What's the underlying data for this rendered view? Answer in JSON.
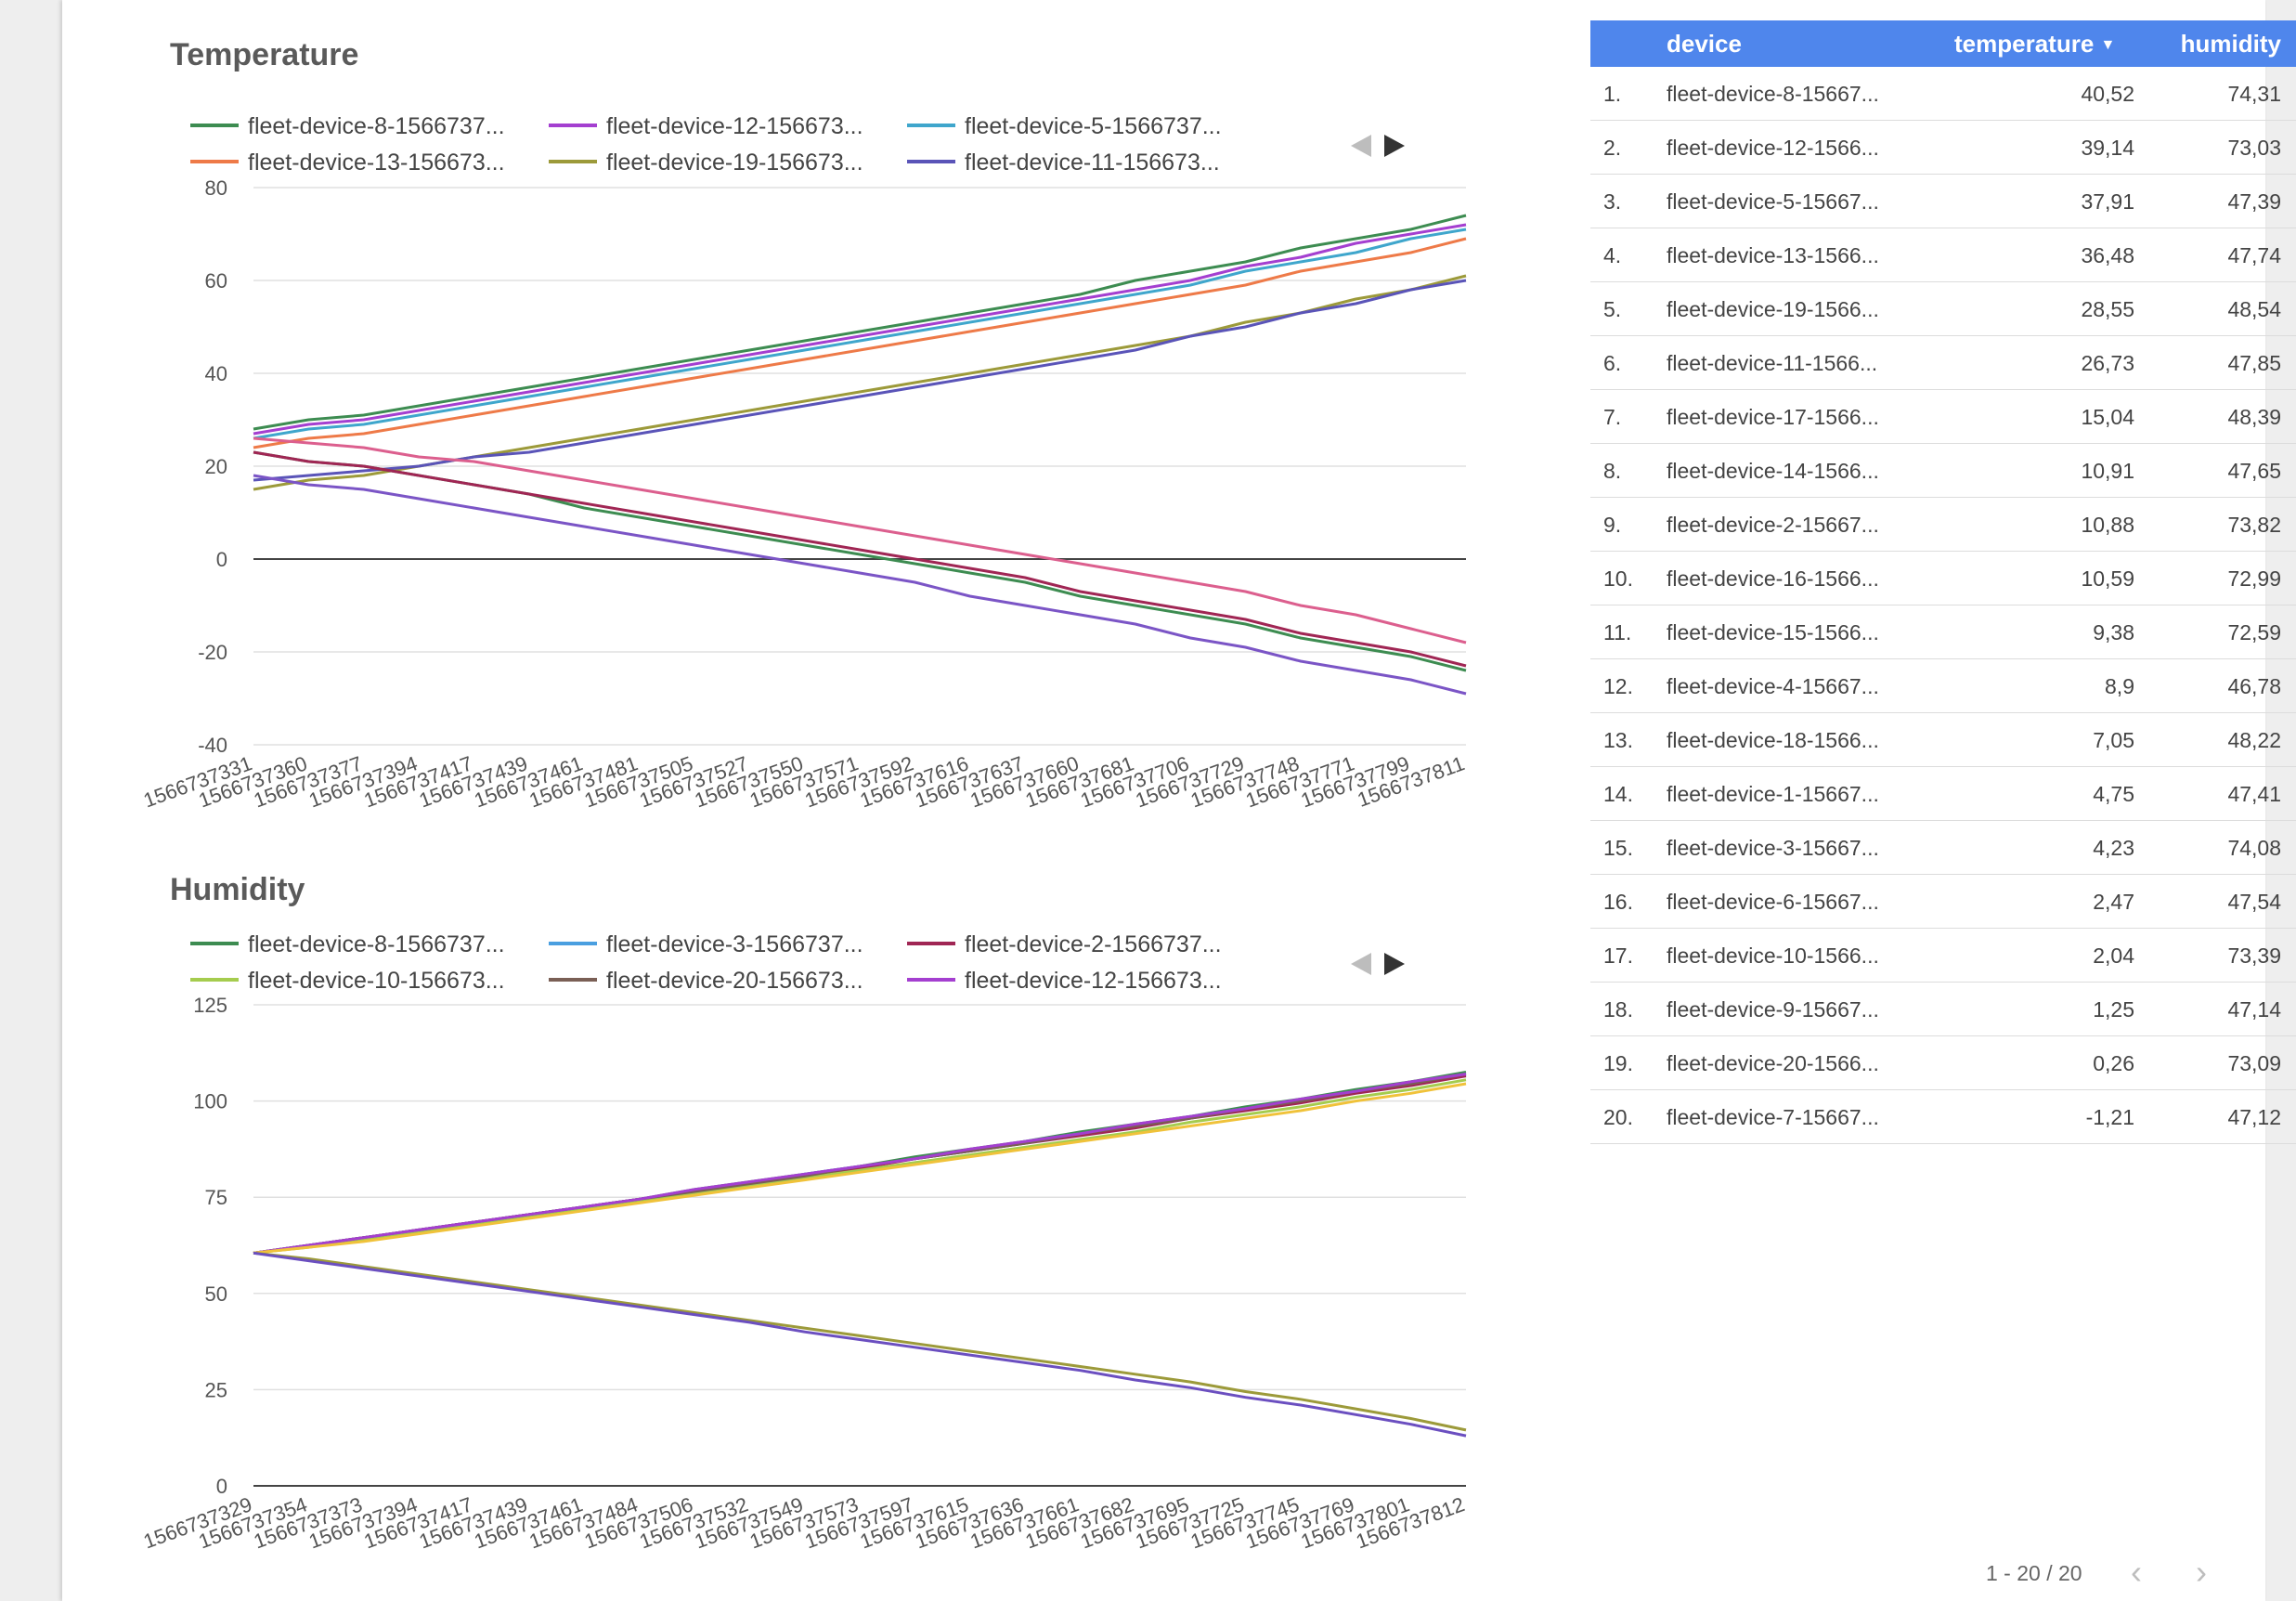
{
  "temperature_chart": {
    "title": "Temperature",
    "legend": [
      {
        "label": "fleet-device-8-1566737...",
        "color": "#3d8c51"
      },
      {
        "label": "fleet-device-12-156673...",
        "color": "#a43fd0"
      },
      {
        "label": "fleet-device-5-1566737...",
        "color": "#3fa6cc"
      },
      {
        "label": "fleet-device-13-156673...",
        "color": "#ee7a48"
      },
      {
        "label": "fleet-device-19-156673...",
        "color": "#9c9a3a"
      },
      {
        "label": "fleet-device-11-156673...",
        "color": "#5a54b8"
      }
    ]
  },
  "humidity_chart": {
    "title": "Humidity",
    "legend": [
      {
        "label": "fleet-device-8-1566737...",
        "color": "#3d8c51"
      },
      {
        "label": "fleet-device-3-1566737...",
        "color": "#4a9fe0"
      },
      {
        "label": "fleet-device-2-1566737...",
        "color": "#a02654"
      },
      {
        "label": "fleet-device-10-156673...",
        "color": "#a5cc4e"
      },
      {
        "label": "fleet-device-20-156673...",
        "color": "#7a5f55"
      },
      {
        "label": "fleet-device-12-156673...",
        "color": "#a43fd0"
      }
    ]
  },
  "chart_data": [
    {
      "type": "line",
      "title": "Temperature",
      "ylim": [
        -40,
        80
      ],
      "yticks": [
        80,
        60,
        40,
        20,
        0,
        -20,
        -40
      ],
      "x": [
        "1566737331",
        "1566737360",
        "1566737377",
        "1566737394",
        "1566737417",
        "1566737439",
        "1566737461",
        "1566737481",
        "1566737505",
        "1566737527",
        "1566737550",
        "1566737571",
        "1566737592",
        "1566737616",
        "1566737637",
        "1566737660",
        "1566737681",
        "1566737706",
        "1566737729",
        "1566737748",
        "1566737771",
        "1566737799",
        "1566737811"
      ],
      "grid": true,
      "legend_position": "top",
      "series": [
        {
          "name": "fleet-device-8-1566737...",
          "color": "#3d8c51",
          "values": [
            28,
            30,
            31,
            33,
            35,
            37,
            39,
            41,
            43,
            45,
            47,
            49,
            51,
            53,
            55,
            57,
            60,
            62,
            64,
            67,
            69,
            71,
            74
          ]
        },
        {
          "name": "fleet-device-12-156673...",
          "color": "#a43fd0",
          "values": [
            27,
            29,
            30,
            32,
            34,
            36,
            38,
            40,
            42,
            44,
            46,
            48,
            50,
            52,
            54,
            56,
            58,
            60,
            63,
            65,
            68,
            70,
            72
          ]
        },
        {
          "name": "fleet-device-5-1566737...",
          "color": "#3fa6cc",
          "values": [
            26,
            28,
            29,
            31,
            33,
            35,
            37,
            39,
            41,
            43,
            45,
            47,
            49,
            51,
            53,
            55,
            57,
            59,
            62,
            64,
            66,
            69,
            71
          ]
        },
        {
          "name": "fleet-device-13-156673...",
          "color": "#ee7a48",
          "values": [
            24,
            26,
            27,
            29,
            31,
            33,
            35,
            37,
            39,
            41,
            43,
            45,
            47,
            49,
            51,
            53,
            55,
            57,
            59,
            62,
            64,
            66,
            69
          ]
        },
        {
          "name": "fleet-device-19-156673...",
          "color": "#9c9a3a",
          "values": [
            15,
            17,
            18,
            20,
            22,
            24,
            26,
            28,
            30,
            32,
            34,
            36,
            38,
            40,
            42,
            44,
            46,
            48,
            51,
            53,
            56,
            58,
            61
          ]
        },
        {
          "name": "fleet-device-11-156673...",
          "color": "#5a54b8",
          "values": [
            17,
            18,
            19,
            20,
            22,
            23,
            25,
            27,
            29,
            31,
            33,
            35,
            37,
            39,
            41,
            43,
            45,
            48,
            50,
            53,
            55,
            58,
            60
          ]
        },
        {
          "color": "#3d8c51",
          "values": [
            23,
            21,
            20,
            18,
            16,
            14,
            11,
            9,
            7,
            5,
            3,
            1,
            -1,
            -3,
            -5,
            -8,
            -10,
            -12,
            -14,
            -17,
            -19,
            -21,
            -24
          ]
        },
        {
          "color": "#a02654",
          "values": [
            23,
            21,
            20,
            18,
            16,
            14,
            12,
            10,
            8,
            6,
            4,
            2,
            0,
            -2,
            -4,
            -7,
            -9,
            -11,
            -13,
            -16,
            -18,
            -20,
            -23
          ]
        },
        {
          "color": "#dc5f8e",
          "values": [
            26,
            25,
            24,
            22,
            21,
            19,
            17,
            15,
            13,
            11,
            9,
            7,
            5,
            3,
            1,
            -1,
            -3,
            -5,
            -7,
            -10,
            -12,
            -15,
            -18
          ]
        },
        {
          "color": "#7b55c6",
          "values": [
            18,
            16,
            15,
            13,
            11,
            9,
            7,
            5,
            3,
            1,
            -1,
            -3,
            -5,
            -8,
            -10,
            -12,
            -14,
            -17,
            -19,
            -22,
            -24,
            -26,
            -29
          ]
        }
      ]
    },
    {
      "type": "line",
      "title": "Humidity",
      "ylim": [
        0,
        125
      ],
      "yticks": [
        125,
        100,
        75,
        50,
        25,
        0
      ],
      "x": [
        "1566737329",
        "1566737354",
        "1566737373",
        "1566737394",
        "1566737417",
        "1566737439",
        "1566737461",
        "1566737484",
        "1566737506",
        "1566737532",
        "1566737549",
        "1566737573",
        "1566737597",
        "1566737615",
        "1566737636",
        "1566737661",
        "1566737682",
        "1566737695",
        "1566737725",
        "1566737745",
        "1566737769",
        "1566737801",
        "1566737812"
      ],
      "grid": true,
      "legend_position": "top",
      "series": [
        {
          "name": "fleet-device-8-1566737...",
          "color": "#3d8c51",
          "values": [
            60.5,
            62.5,
            64.5,
            66.5,
            68.5,
            70.5,
            72.5,
            74.5,
            77,
            79,
            81,
            83,
            85.5,
            87.5,
            89.5,
            92,
            94,
            96,
            98.5,
            100.5,
            103,
            105,
            107.5
          ]
        },
        {
          "name": "fleet-device-3-1566737...",
          "color": "#4a9fe0",
          "values": [
            60.5,
            62.5,
            64.5,
            66.5,
            68.5,
            70.5,
            72.5,
            74.5,
            76.5,
            78.5,
            81,
            83,
            85,
            87,
            89.5,
            91.5,
            93.5,
            96,
            98,
            100,
            102.5,
            104.5,
            107
          ]
        },
        {
          "name": "fleet-device-2-1566737...",
          "color": "#a02654",
          "values": [
            60.5,
            62.5,
            64.5,
            66.5,
            68.5,
            70.5,
            72.5,
            74.5,
            76.5,
            78.5,
            80.5,
            82.5,
            85,
            87,
            89,
            91,
            93,
            95.5,
            97.5,
            99.5,
            102,
            104,
            106.5
          ]
        },
        {
          "name": "fleet-device-10-156673...",
          "color": "#a5cc4e",
          "values": [
            60.5,
            62,
            64,
            66,
            68,
            70,
            72,
            74,
            76,
            78,
            80,
            82,
            84,
            86,
            88,
            90,
            92,
            94.5,
            96.5,
            98.5,
            101,
            103,
            105.5
          ]
        },
        {
          "name": "fleet-device-20-156673...",
          "color": "#7a5f55",
          "values": [
            60.5,
            62.5,
            64.5,
            66.5,
            68.5,
            70.5,
            72.5,
            74.5,
            76.5,
            78.5,
            80.5,
            83,
            85,
            87,
            89,
            91.5,
            93.5,
            95.5,
            98,
            100,
            102.5,
            104.5,
            107
          ]
        },
        {
          "name": "fleet-device-12-156673...",
          "color": "#a43fd0",
          "values": [
            60.5,
            62.5,
            64.5,
            66.5,
            68.5,
            70.5,
            72.5,
            74.5,
            77,
            79,
            81,
            83,
            85,
            87.5,
            89.5,
            91.5,
            94,
            96,
            98,
            100.5,
            102.5,
            105,
            107
          ]
        },
        {
          "color": "#f0c23a",
          "values": [
            60.5,
            62,
            63.5,
            65.5,
            67.5,
            69.5,
            71.5,
            73.5,
            75.5,
            77.5,
            79.5,
            81.5,
            83.5,
            85.5,
            87.5,
            89.5,
            91.5,
            93.5,
            95.5,
            97.5,
            100,
            102,
            104.5
          ]
        },
        {
          "color": "#9c9a3a",
          "values": [
            60.5,
            59,
            57,
            55,
            53,
            51,
            49,
            47,
            45,
            43,
            41,
            39,
            37,
            35,
            33,
            31,
            29,
            27,
            24.5,
            22.5,
            20,
            17.5,
            14.5
          ]
        },
        {
          "color": "#6b4fc0",
          "values": [
            60.5,
            58.5,
            56.5,
            54.5,
            52.5,
            50.5,
            48.5,
            46.5,
            44.5,
            42.5,
            40,
            38,
            36,
            34,
            32,
            30,
            27.5,
            25.5,
            23,
            21,
            18.5,
            16,
            13
          ]
        }
      ]
    }
  ],
  "table": {
    "headers": {
      "device": "device",
      "temperature": "temperature",
      "humidity": "humidity"
    },
    "sort_icon": "sort-desc-icon",
    "rows": [
      {
        "index": "1.",
        "device": "fleet-device-8-15667...",
        "temperature": "40,52",
        "humidity": "74,31"
      },
      {
        "index": "2.",
        "device": "fleet-device-12-1566...",
        "temperature": "39,14",
        "humidity": "73,03"
      },
      {
        "index": "3.",
        "device": "fleet-device-5-15667...",
        "temperature": "37,91",
        "humidity": "47,39"
      },
      {
        "index": "4.",
        "device": "fleet-device-13-1566...",
        "temperature": "36,48",
        "humidity": "47,74"
      },
      {
        "index": "5.",
        "device": "fleet-device-19-1566...",
        "temperature": "28,55",
        "humidity": "48,54"
      },
      {
        "index": "6.",
        "device": "fleet-device-11-1566...",
        "temperature": "26,73",
        "humidity": "47,85"
      },
      {
        "index": "7.",
        "device": "fleet-device-17-1566...",
        "temperature": "15,04",
        "humidity": "48,39"
      },
      {
        "index": "8.",
        "device": "fleet-device-14-1566...",
        "temperature": "10,91",
        "humidity": "47,65"
      },
      {
        "index": "9.",
        "device": "fleet-device-2-15667...",
        "temperature": "10,88",
        "humidity": "73,82"
      },
      {
        "index": "10.",
        "device": "fleet-device-16-1566...",
        "temperature": "10,59",
        "humidity": "72,99"
      },
      {
        "index": "11.",
        "device": "fleet-device-15-1566...",
        "temperature": "9,38",
        "humidity": "72,59"
      },
      {
        "index": "12.",
        "device": "fleet-device-4-15667...",
        "temperature": "8,9",
        "humidity": "46,78"
      },
      {
        "index": "13.",
        "device": "fleet-device-18-1566...",
        "temperature": "7,05",
        "humidity": "48,22"
      },
      {
        "index": "14.",
        "device": "fleet-device-1-15667...",
        "temperature": "4,75",
        "humidity": "47,41"
      },
      {
        "index": "15.",
        "device": "fleet-device-3-15667...",
        "temperature": "4,23",
        "humidity": "74,08"
      },
      {
        "index": "16.",
        "device": "fleet-device-6-15667...",
        "temperature": "2,47",
        "humidity": "47,54"
      },
      {
        "index": "17.",
        "device": "fleet-device-10-1566...",
        "temperature": "2,04",
        "humidity": "73,39"
      },
      {
        "index": "18.",
        "device": "fleet-device-9-15667...",
        "temperature": "1,25",
        "humidity": "47,14"
      },
      {
        "index": "19.",
        "device": "fleet-device-20-1566...",
        "temperature": "0,26",
        "humidity": "73,09"
      },
      {
        "index": "20.",
        "device": "fleet-device-7-15667...",
        "temperature": "-1,21",
        "humidity": "47,12"
      }
    ],
    "pagination": {
      "label": "1 - 20 / 20",
      "prev_icon": "chevron-left-icon",
      "next_icon": "chevron-right-icon"
    }
  },
  "colors": {
    "accent": "#4f86ec",
    "legend_arrow_active": "#333333",
    "legend_arrow_inactive": "#bdbdbd"
  }
}
